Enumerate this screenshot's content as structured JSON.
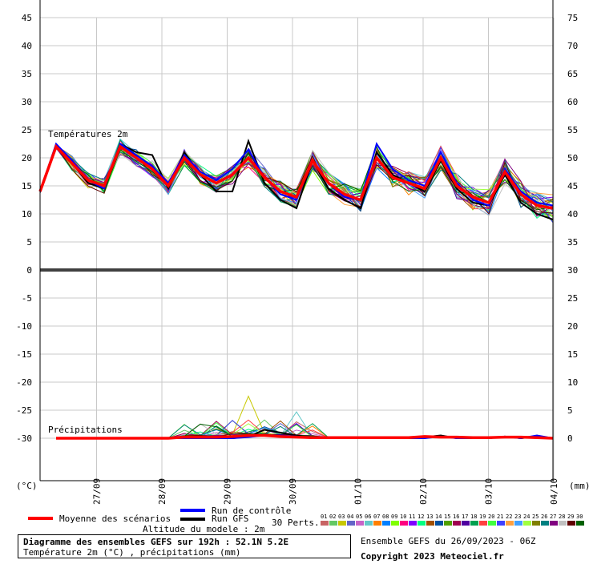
{
  "chart_data": {
    "type": "line",
    "title": "Diagramme des ensembles GEFS sur 192h : 52.1N 5.2E",
    "subtitle": "Température 2m (°C) , précipitations (mm)",
    "panels": [
      {
        "name": "Températures 2m",
        "unit_left": "(°C)",
        "range": [
          0,
          45
        ]
      },
      {
        "name": "Précipitations",
        "unit_right": "(mm)",
        "range": [
          0,
          30
        ]
      }
    ],
    "left_ticks": [
      "45",
      "40",
      "35",
      "30",
      "25",
      "20",
      "15",
      "10",
      "5",
      "0",
      "-5",
      "-10",
      "-15",
      "-20",
      "-25",
      "-30"
    ],
    "right_ticks": [
      "75",
      "70",
      "65",
      "60",
      "55",
      "50",
      "45",
      "40",
      "35",
      "30",
      "25",
      "20",
      "15",
      "10",
      "5",
      "0"
    ],
    "x_labels": [
      "27/09",
      "28/09",
      "29/09",
      "30/09",
      "01/10",
      "02/10",
      "03/10",
      "04/10"
    ],
    "x_step_hours": 6,
    "temperature": {
      "mean": [
        14,
        22,
        19,
        16,
        15,
        22,
        20,
        18,
        15,
        20,
        17,
        15.5,
        17,
        20,
        16.5,
        14,
        13,
        19.5,
        15.5,
        13.5,
        12.5,
        20,
        16.5,
        15.5,
        14.5,
        20,
        15,
        13,
        12,
        17.5,
        13.5,
        11.5,
        11
      ],
      "control": [
        14,
        22.5,
        19.5,
        16,
        14.5,
        22.5,
        20.5,
        18.5,
        15.5,
        20.5,
        17.5,
        16,
        18,
        21.5,
        16.5,
        13.5,
        12.5,
        19.5,
        15.5,
        13,
        12.5,
        22.5,
        18,
        16,
        15,
        21,
        15.5,
        12.5,
        11.5,
        18,
        14,
        12,
        11.5
      ],
      "gfs": [
        14,
        22,
        19,
        15.5,
        14.5,
        22.5,
        21,
        20.5,
        14.5,
        21,
        17,
        14,
        14,
        23,
        15.5,
        12.5,
        11,
        19.5,
        14.5,
        12.5,
        11,
        21,
        17,
        15.5,
        14,
        19.5,
        14.5,
        12,
        11.5,
        17,
        12,
        10,
        9
      ]
    },
    "precipitation": {
      "mean": [
        0,
        0,
        0,
        0,
        0,
        0,
        0,
        0,
        0.2,
        0.2,
        0.2,
        0.3,
        0.5,
        0.5,
        0.3,
        0.2,
        0.1,
        0.1,
        0.1,
        0.1,
        0.1,
        0.1,
        0.1,
        0.3,
        0.2,
        0.2,
        0.1,
        0.1,
        0.2,
        0.2,
        0.1,
        0
      ],
      "control": [
        0,
        0,
        0,
        0,
        0,
        0,
        0,
        0,
        0,
        0,
        0,
        0,
        0.2,
        0.5,
        0.5,
        0.3,
        0,
        0.2,
        0,
        0,
        0,
        0,
        0,
        0,
        0.3,
        0,
        0,
        0,
        0.3,
        0,
        0.5,
        0
      ],
      "gfs": [
        0,
        0,
        0,
        0,
        0,
        0,
        0,
        0,
        0,
        0,
        0,
        0,
        0.3,
        1.5,
        1,
        0.5,
        0,
        0,
        0,
        0,
        0,
        0,
        0,
        0.2,
        0.5,
        0,
        0,
        0,
        0.3,
        0,
        0.3,
        0
      ]
    },
    "legend": {
      "mean": "Moyenne des scénarios",
      "control": "Run de contrôle",
      "gfs": "Run GFS",
      "perts_label": "30 Perts.",
      "perts": [
        "01",
        "02",
        "03",
        "04",
        "05",
        "06",
        "07",
        "08",
        "09",
        "10",
        "11",
        "12",
        "13",
        "14",
        "15",
        "16",
        "17",
        "18",
        "19",
        "20",
        "21",
        "22",
        "23",
        "24",
        "25",
        "26",
        "27",
        "28",
        "29",
        "30"
      ],
      "pert_colors": [
        "#c86464",
        "#64c864",
        "#c8c800",
        "#6464c8",
        "#c864c8",
        "#64c8c8",
        "#ff8000",
        "#0080ff",
        "#80ff00",
        "#ff0080",
        "#8000ff",
        "#00ff80",
        "#a05000",
        "#0050a0",
        "#50a000",
        "#a00050",
        "#5000a0",
        "#00a050",
        "#ff4040",
        "#40ff40",
        "#4040ff",
        "#ffa040",
        "#40a0ff",
        "#a0ff40",
        "#808000",
        "#008080",
        "#800080",
        "#c0c0c0",
        "#600000",
        "#006000"
      ],
      "colors": {
        "mean": "#ff0000",
        "control": "#0000ff",
        "gfs": "#000000"
      }
    },
    "altitude_note": "Altitude du modele : 2m",
    "run_info": "Ensemble GEFS du 26/09/2023 - 06Z",
    "copyright": "Copyright 2023 Meteociel.fr"
  }
}
